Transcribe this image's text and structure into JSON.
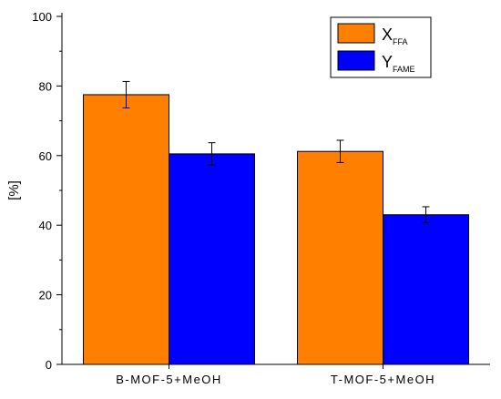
{
  "chart_data": {
    "type": "bar",
    "categories": [
      "B-MOF-5+MeOH",
      "T-MOF-5+MeOH"
    ],
    "series": [
      {
        "name": "X",
        "subscript": "FFA",
        "color": "#ff8000",
        "values": [
          77.5,
          61.2
        ],
        "errors": [
          3.8,
          3.2
        ]
      },
      {
        "name": "Y",
        "subscript": "FAME",
        "color": "#0000ff",
        "values": [
          60.5,
          43.0
        ],
        "errors": [
          3.2,
          2.3
        ]
      }
    ],
    "ylabel": "[%]",
    "xlabel": "",
    "ylim": [
      0,
      100
    ],
    "yticks": [
      0,
      20,
      40,
      60,
      80,
      100
    ],
    "legend": "top-right",
    "grid": false
  }
}
